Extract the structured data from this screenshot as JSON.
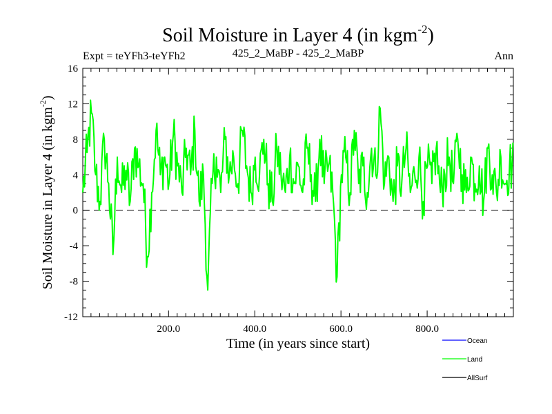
{
  "chart_data": {
    "type": "line",
    "title": "Soil Moisture in Layer 4 (in kgm",
    "title_superscript": "-2",
    "title_close": ")",
    "subtitle_left": "Expt = teYFh3-teYFh2",
    "subtitle_center": "425_2_MaBP - 425_2_MaBP",
    "subtitle_right": "Ann",
    "xlabel": "Time (in years since start)",
    "ylabel": "Soil Moisture in Layer 4 (in kgm",
    "ylabel_superscript": "-2",
    "ylabel_close": ")",
    "xlim": [
      1,
      1000
    ],
    "ylim": [
      -12,
      16
    ],
    "x_ticks": [
      {
        "value": 200,
        "label": "200.0"
      },
      {
        "value": 400,
        "label": "400.0"
      },
      {
        "value": 600,
        "label": "600.0"
      },
      {
        "value": 800,
        "label": "800.0"
      }
    ],
    "y_ticks": [
      {
        "value": 16,
        "label": "16"
      },
      {
        "value": 12,
        "label": "12"
      },
      {
        "value": 8,
        "label": "8"
      },
      {
        "value": 4,
        "label": "4"
      },
      {
        "value": 0,
        "label": "0"
      },
      {
        "value": -4,
        "label": "-4"
      },
      {
        "value": -8,
        "label": "-8"
      },
      {
        "value": -12,
        "label": "-12"
      }
    ],
    "zero_line": 0,
    "series": [
      {
        "name": "Ocean",
        "color": "#0000ff",
        "values": []
      },
      {
        "name": "Land",
        "color": "#00ff00",
        "x_start": 1,
        "x_step": 10,
        "values": [
          2.0,
          6.5,
          11.0,
          4.0,
          1.0,
          8.0,
          3.0,
          -5.0,
          6.0,
          2.0,
          4.5,
          1.0,
          7.0,
          5.0,
          3.0,
          -5.2,
          2.0,
          9.0,
          4.0,
          6.0,
          3.0,
          8.5,
          5.0,
          2.0,
          7.0,
          4.0,
          9.0,
          1.0,
          4.0,
          -9.0,
          3.0,
          6.0,
          2.0,
          8.0,
          4.0,
          6.0,
          3.0,
          9.0,
          5.0,
          2.0,
          6.0,
          4.0,
          8.0,
          3.0,
          1.0,
          7.0,
          4.0,
          2.0,
          6.0,
          3.0,
          5.0,
          2.0,
          7.0,
          4.0,
          1.0,
          8.0,
          3.0,
          5.0,
          2.0,
          -7.5,
          4.0,
          6.0,
          2.0,
          9.0,
          3.0,
          5.0,
          2.0,
          7.0,
          4.0,
          11.5,
          3.0,
          6.0,
          1.0,
          5.0,
          3.0,
          7.0,
          2.0,
          4.0,
          6.0,
          1.0,
          5.0,
          3.0,
          7.0,
          2.0,
          4.0,
          6.0,
          3.0,
          8.0,
          4.0,
          2.0,
          6.0,
          3.0,
          5.0,
          1.0,
          7.0,
          4.0,
          2.0,
          6.0,
          3.0,
          5.0
        ]
      },
      {
        "name": "AllSurf",
        "color": "#000000",
        "values": []
      }
    ],
    "legend": {
      "placement": "bottom-right",
      "entries": [
        "Ocean",
        "Land",
        "AllSurf"
      ]
    },
    "grid": false
  }
}
